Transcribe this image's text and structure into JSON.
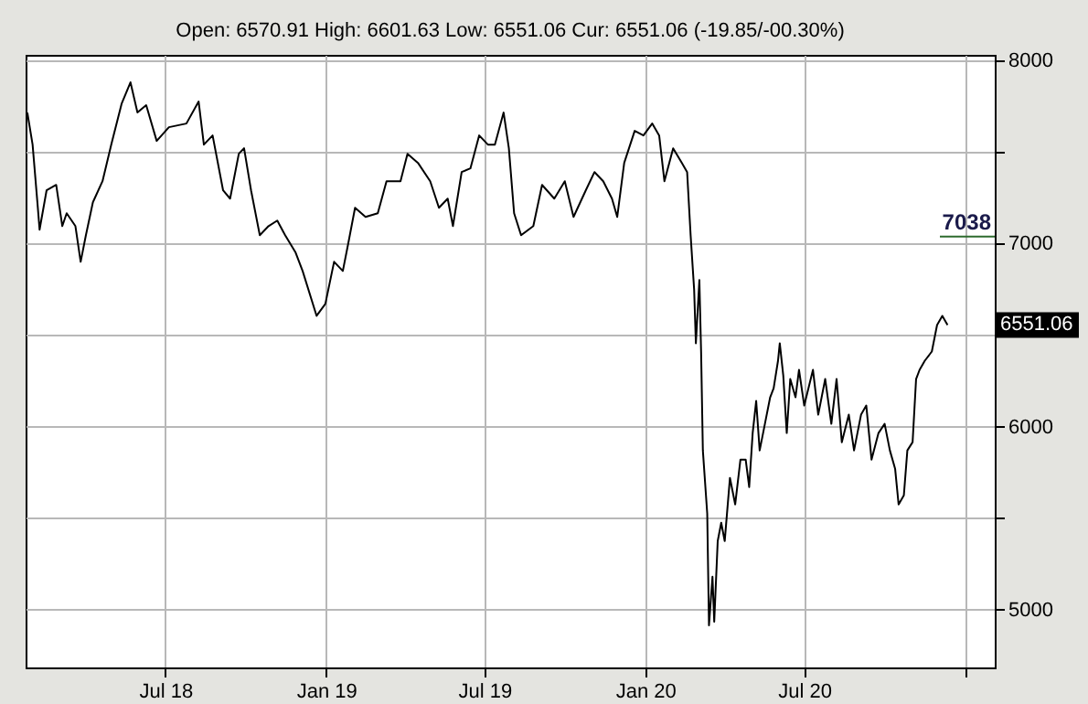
{
  "chart_data": {
    "type": "line",
    "title": "Open: 6570.91 High: 6601.63 Low: 6551.06 Cur: 6551.06 (-19.85/-00.30%)",
    "x": [
      "2018-01-24",
      "2018-01-30",
      "2018-02-05",
      "2018-02-07",
      "2018-02-15",
      "2018-02-26",
      "2018-03-05",
      "2018-03-10",
      "2018-03-20",
      "2018-03-26",
      "2018-04-01",
      "2018-04-09",
      "2018-04-20",
      "2018-04-30",
      "2018-05-12",
      "2018-05-22",
      "2018-05-30",
      "2018-06-09",
      "2018-06-21",
      "2018-07-05",
      "2018-07-25",
      "2018-08-08",
      "2018-08-14",
      "2018-08-24",
      "2018-09-05",
      "2018-09-13",
      "2018-09-23",
      "2018-09-29",
      "2018-10-07",
      "2018-10-17",
      "2018-10-27",
      "2018-11-06",
      "2018-11-15",
      "2018-11-27",
      "2018-12-05",
      "2018-12-21",
      "2018-12-31",
      "2019-01-10",
      "2019-01-20",
      "2019-01-26",
      "2019-02-03",
      "2019-02-15",
      "2019-03-01",
      "2019-03-11",
      "2019-03-27",
      "2019-04-04",
      "2019-04-16",
      "2019-04-30",
      "2019-05-10",
      "2019-05-20",
      "2019-05-26",
      "2019-06-05",
      "2019-06-15",
      "2019-06-25",
      "2019-07-05",
      "2019-07-13",
      "2019-07-23",
      "2019-07-29",
      "2019-08-04",
      "2019-08-12",
      "2019-08-26",
      "2019-09-05",
      "2019-09-19",
      "2019-10-01",
      "2019-10-11",
      "2019-10-25",
      "2019-11-04",
      "2019-11-14",
      "2019-11-24",
      "2019-11-30",
      "2019-12-08",
      "2019-12-20",
      "2019-12-30",
      "2020-01-09",
      "2020-01-17",
      "2020-01-23",
      "2020-02-02",
      "2020-02-12",
      "2020-02-18",
      "2020-02-22",
      "2020-02-26",
      "2020-02-28",
      "2020-03-03",
      "2020-03-05",
      "2020-03-07",
      "2020-03-12",
      "2020-03-14",
      "2020-03-18",
      "2020-03-20",
      "2020-03-24",
      "2020-03-28",
      "2020-04-01",
      "2020-04-07",
      "2020-04-13",
      "2020-04-19",
      "2020-04-25",
      "2020-04-29",
      "2020-05-03",
      "2020-05-07",
      "2020-05-11",
      "2020-05-17",
      "2020-05-23",
      "2020-05-27",
      "2020-06-01",
      "2020-06-03",
      "2020-06-07",
      "2020-06-11",
      "2020-06-15",
      "2020-06-21",
      "2020-06-25",
      "2020-07-01",
      "2020-07-11",
      "2020-07-17",
      "2020-07-25",
      "2020-08-01",
      "2020-08-07",
      "2020-08-13",
      "2020-08-21",
      "2020-08-27",
      "2020-09-04",
      "2020-09-10",
      "2020-09-16",
      "2020-09-24",
      "2020-10-01",
      "2020-10-07",
      "2020-10-13",
      "2020-10-17",
      "2020-10-23",
      "2020-10-27",
      "2020-11-02",
      "2020-11-06",
      "2020-11-10",
      "2020-11-16",
      "2020-11-24",
      "2020-11-30",
      "2020-12-06",
      "2020-12-12"
    ],
    "series": [
      {
        "color": "#000000",
        "values": [
          7715,
          7540,
          7195,
          7075,
          7290,
          7320,
          7095,
          7165,
          7095,
          6900,
          7045,
          7225,
          7340,
          7540,
          7765,
          7880,
          7715,
          7755,
          7560,
          7635,
          7655,
          7775,
          7540,
          7590,
          7290,
          7245,
          7490,
          7520,
          7290,
          7045,
          7095,
          7125,
          7045,
          6950,
          6850,
          6605,
          6670,
          6900,
          6850,
          6995,
          7195,
          7145,
          7165,
          7340,
          7340,
          7490,
          7440,
          7340,
          7195,
          7245,
          7095,
          7390,
          7410,
          7590,
          7540,
          7540,
          7715,
          7520,
          7165,
          7045,
          7095,
          7320,
          7245,
          7340,
          7145,
          7290,
          7390,
          7340,
          7245,
          7145,
          7440,
          7615,
          7590,
          7655,
          7590,
          7340,
          7520,
          7440,
          7390,
          7045,
          6750,
          6455,
          6800,
          6405,
          5870,
          5525,
          4915,
          5180,
          4935,
          5375,
          5475,
          5375,
          5720,
          5575,
          5820,
          5820,
          5670,
          5965,
          6140,
          5870,
          6015,
          6160,
          6210,
          6360,
          6455,
          6280,
          5965,
          6260,
          6160,
          6310,
          6115,
          6310,
          6065,
          6260,
          6015,
          6260,
          5915,
          6065,
          5870,
          6065,
          6115,
          5820,
          5965,
          6015,
          5870,
          5770,
          5575,
          5625,
          5870,
          5915,
          6260,
          6310,
          6360,
          6410,
          6555,
          6605,
          6555
        ]
      }
    ],
    "xlim": [
      "2018-01-22",
      "2021-02-04"
    ],
    "xticks": [
      {
        "value": "2018-07-01",
        "label": "Jul 18"
      },
      {
        "value": "2019-01-01",
        "label": "Jan 19"
      },
      {
        "value": "2019-07-01",
        "label": "Jul 19"
      },
      {
        "value": "2020-01-01",
        "label": "Jan 20"
      },
      {
        "value": "2020-07-01",
        "label": "Jul 20"
      },
      {
        "value": "2021-01-01",
        "label": null
      }
    ],
    "ylim": [
      4685,
      8030
    ],
    "yticks": [
      5000,
      {
        "value": 5500,
        "label": null
      },
      6000,
      {
        "value": 6500,
        "label": null
      },
      7000,
      {
        "value": 7500,
        "label": null
      },
      8000
    ],
    "ref_lines": [
      {
        "axis": "y",
        "value": 7038,
        "label": "7038",
        "color": "#2e6b2e"
      }
    ],
    "annotations": [
      "6551.06"
    ],
    "grid": true,
    "line_style": "solid",
    "marker": "none"
  }
}
